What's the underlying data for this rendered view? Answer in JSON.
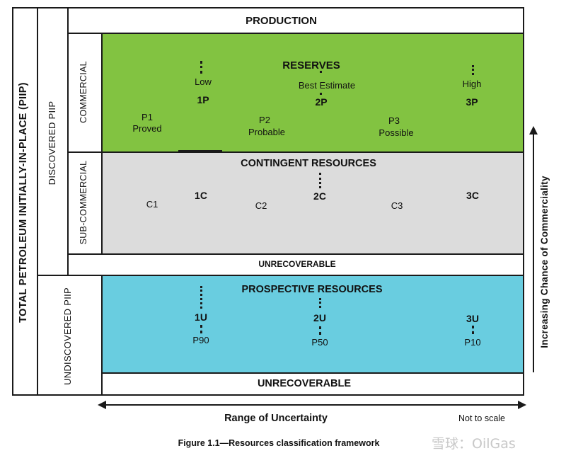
{
  "framework": {
    "total": "TOTAL PETROLEUM INITIALLY-IN-PLACE (PIIP)",
    "discovered": "DISCOVERED PIIP",
    "undiscovered": "UNDISCOVERED PIIP",
    "production": "PRODUCTION",
    "commercial": "COMMERCIAL",
    "sub_commercial": "SUB-COMMERCIAL",
    "unrecoverable_mid": "UNRECOVERABLE",
    "unrecoverable_bottom": "UNRECOVERABLE"
  },
  "reserves": {
    "title": "RESERVES",
    "low": "Low",
    "best": "Best Estimate",
    "high": "High",
    "p1": "1P",
    "p2": "2P",
    "p3": "3P",
    "proved_code": "P1",
    "proved": "Proved",
    "probable_code": "P2",
    "probable": "Probable",
    "possible_code": "P3",
    "possible": "Possible"
  },
  "contingent": {
    "title": "CONTINGENT RESOURCES",
    "c1": "C1",
    "c1c": "1C",
    "c2": "C2",
    "c2c": "2C",
    "c3": "C3",
    "c3c": "3C"
  },
  "prospective": {
    "title": "PROSPECTIVE RESOURCES",
    "u1": "1U",
    "u2": "2U",
    "u3": "3U",
    "p90": "P90",
    "p50": "P50",
    "p10": "P10"
  },
  "axes": {
    "uncertainty": "Range of Uncertainty",
    "not_to_scale": "Not to scale",
    "commerciality": "Increasing Chance of Commerciality"
  },
  "caption": "Figure 1.1—Resources classification framework",
  "watermark": "雪球：OilGas",
  "colors": {
    "reserves": "#82c341",
    "contingent": "#dcdcdc",
    "prospective": "#69cde0"
  }
}
